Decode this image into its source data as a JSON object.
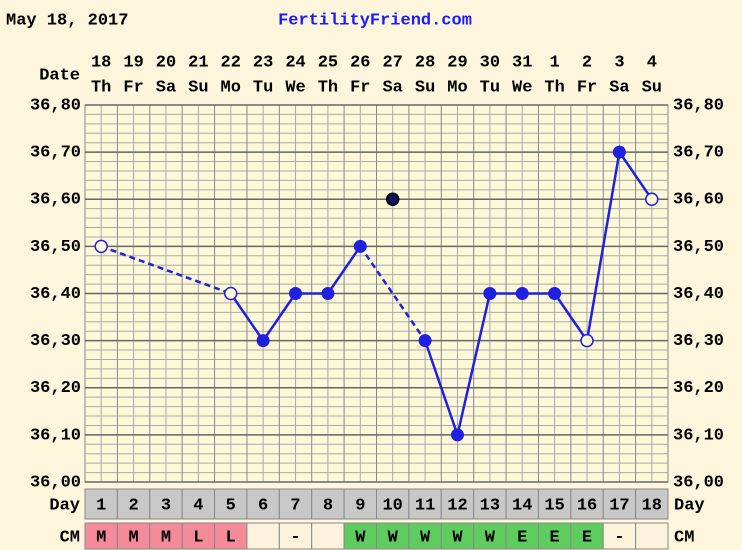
{
  "chart_data": {
    "type": "line",
    "date": "May 18, 2017",
    "site": "FertilityFriend.com",
    "date_label": "Date",
    "day_label": "Day",
    "cm_label": "CM",
    "dates": [
      "18",
      "19",
      "20",
      "21",
      "22",
      "23",
      "24",
      "25",
      "26",
      "27",
      "28",
      "29",
      "30",
      "31",
      "1",
      "2",
      "3",
      "4"
    ],
    "weekdays": [
      "Th",
      "Fr",
      "Sa",
      "Su",
      "Mo",
      "Tu",
      "We",
      "Th",
      "Fr",
      "Sa",
      "Su",
      "Mo",
      "Tu",
      "We",
      "Th",
      "Fr",
      "Sa",
      "Su"
    ],
    "days": [
      "1",
      "2",
      "3",
      "4",
      "5",
      "6",
      "7",
      "8",
      "9",
      "10",
      "11",
      "12",
      "13",
      "14",
      "15",
      "16",
      "17",
      "18"
    ],
    "cm": [
      "M",
      "M",
      "M",
      "L",
      "L",
      null,
      "-",
      null,
      "W",
      "W",
      "W",
      "W",
      "W",
      "E",
      "E",
      "E",
      "-",
      null
    ],
    "series": [
      {
        "color": "#2020e0",
        "values": [
          36.5,
          null,
          null,
          null,
          36.4,
          36.3,
          36.4,
          36.4,
          36.5,
          36.6,
          36.3,
          36.1,
          36.4,
          36.4,
          36.4,
          36.3,
          36.7,
          36.6
        ],
        "point_style": [
          "open",
          null,
          null,
          null,
          "open",
          "filled",
          "filled",
          "filled",
          "filled",
          "discarded",
          "filled",
          "filled",
          "filled",
          "filled",
          "filled",
          "open",
          "filled",
          "open"
        ]
      }
    ],
    "ylim": [
      36.0,
      36.8
    ],
    "yticks": [
      {
        "value": 36.0,
        "label": "36,00"
      },
      {
        "value": 36.1,
        "label": "36,10"
      },
      {
        "value": 36.2,
        "label": "36,20"
      },
      {
        "value": 36.3,
        "label": "36,30"
      },
      {
        "value": 36.4,
        "label": "36,40"
      },
      {
        "value": 36.5,
        "label": "36,50"
      },
      {
        "value": 36.6,
        "label": "36,60"
      },
      {
        "value": 36.7,
        "label": "36,70"
      },
      {
        "value": 36.8,
        "label": "36,80"
      }
    ],
    "grid": true
  }
}
